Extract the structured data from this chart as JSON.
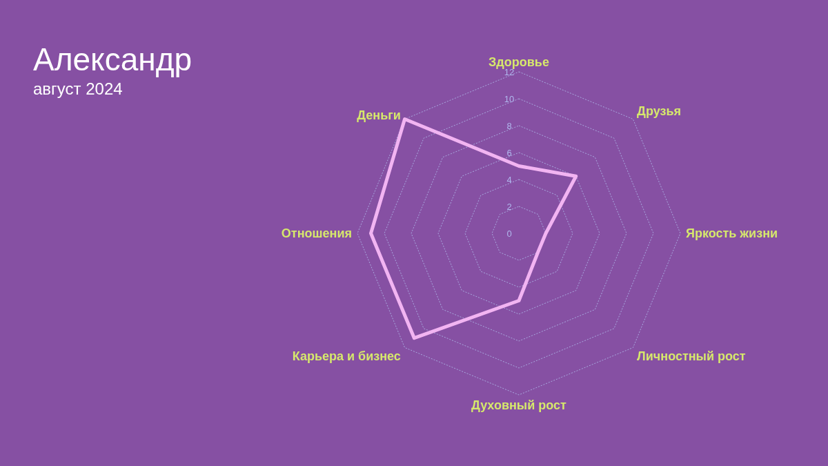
{
  "chart_data": {
    "type": "radar",
    "title": "Александр",
    "subtitle": "август 2024",
    "categories": [
      "Здоровье",
      "Друзья",
      "Яркость жизни",
      "Личностный рост",
      "Духовный рост",
      "Карьера и бизнес",
      "Отношения",
      "Деньги"
    ],
    "series": [
      {
        "color": "#f2b4f2",
        "values": [
          5,
          6,
          2,
          2,
          5,
          11,
          11,
          12
        ]
      }
    ],
    "ylim": [
      0,
      12
    ],
    "yticks": [
      0,
      2,
      4,
      6,
      8,
      10,
      12
    ],
    "grid": true,
    "legend": false,
    "marker": "none"
  }
}
